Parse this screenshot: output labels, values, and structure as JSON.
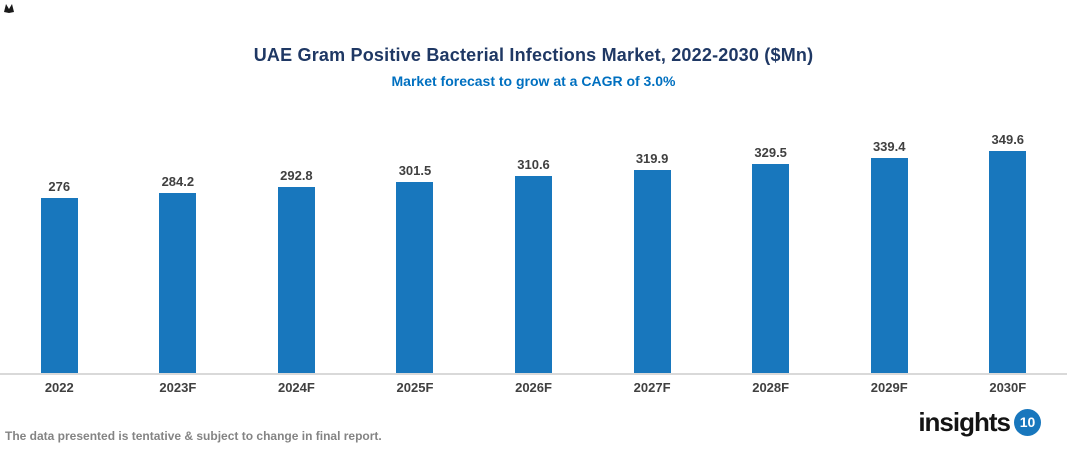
{
  "header": {
    "title": "UAE Gram Positive Bacterial Infections Market, 2022-2030 ($Mn)",
    "subtitle": "Market forecast to grow at a CAGR of 3.0%"
  },
  "chart_data": {
    "type": "bar",
    "title": "UAE Gram Positive Bacterial Infections Market, 2022-2030 ($Mn)",
    "subtitle": "Market forecast to grow at a CAGR of 3.0%",
    "categories": [
      "2022",
      "2023F",
      "2024F",
      "2025F",
      "2026F",
      "2027F",
      "2028F",
      "2029F",
      "2030F"
    ],
    "values": [
      276,
      284.2,
      292.8,
      301.5,
      310.6,
      319.9,
      329.5,
      339.4,
      349.6
    ],
    "value_labels": [
      "276",
      "284.2",
      "292.8",
      "301.5",
      "310.6",
      "319.9",
      "329.5",
      "339.4",
      "349.6"
    ],
    "xlabel": "",
    "ylabel": "",
    "ylim": [
      0,
      410
    ],
    "grid": false,
    "legend": false,
    "cagr": "3.0%"
  },
  "colors": {
    "bar": "#1877bd",
    "title_text": "#1f3864",
    "subtitle_text": "#0070c0",
    "value_label_text": "#404040",
    "axis_line": "#d9d9d9",
    "disclaimer_text": "#848484",
    "logo_badge": "#1877bd"
  },
  "footer": {
    "disclaimer": "The data presented is tentative & subject to change in final report.",
    "logo_text": "insights",
    "logo_badge": "10"
  }
}
